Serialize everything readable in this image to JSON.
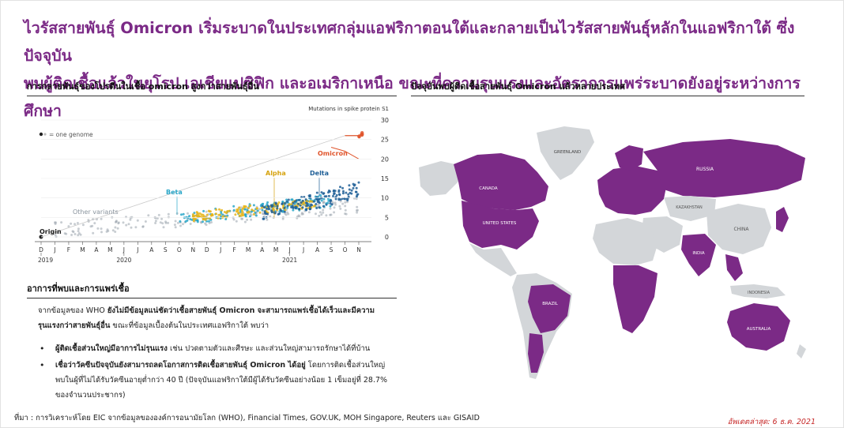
{
  "headline": {
    "line1": "ไวรัสสายพันธุ์ Omicron เริ่มระบาดในประเทศกลุ่มแอฟริกาตอนใต้และกลายเป็นไวรัสสายพันธุ์หลักในแอฟริกาใต้ ซึ่งปัจจุบัน",
    "line2": "พบผู้ติดเชื้อแล้วในยุโรป เอเชียแปซิฟิก และอเมริกาเหนือ ขณะที่ความรุนแรงและอัตราการแพร่ระบาดยังอยู่ระหว่างการศึกษา"
  },
  "left_section": {
    "title": "การกลายพันธุ์ของโปรตีนในเชื้อ omicron สูงกว่าสายพันธุ์อื่น"
  },
  "right_section": {
    "title": "ปัจจุบันพบผู้ติดเชื้อสายพันธุ์ Omicron แล้วหลายประเทศ"
  },
  "bottom_section": {
    "title": "อาการที่พบและการแพร่เชื้อ",
    "para_prefix": "จากข้อมูลของ WHO ",
    "para_bold": "ยังไม่มีข้อมูลแน่ชัดว่าเชื้อสายพันธุ์ Omicron จะสามารถแพร่เชื้อได้เร็วและมีความรุนแรงกว่าสายพันธุ์อื่น",
    "para_suffix": " ขณะที่ข้อมูลเบื้องต้นในประเทศแอฟริกาใต้ พบว่า",
    "bullets": [
      {
        "bold": "ผู้ติดเชื้อส่วนใหญ่มีอาการไม่รุนแรง",
        "rest": " เช่น ปวดตามตัวและศีรษะ และส่วนใหญ่สามารถรักษาได้ที่บ้าน"
      },
      {
        "bold": "เชื่อว่าวัคซีนปัจจุบันยังสามารถลดโอกาสการติดเชื้อสายพันธุ์ Omicron ได้อยู่",
        "rest": " โดยการติดเชื้อส่วนใหญ่พบในผู้ที่ไม่ได้รับวัคซีนอายุต่ำกว่า 40 ปี (ปัจจุบันแอฟริกาใต้มีผู้ได้รับวัคซีนอย่างน้อย 1 เข็มอยู่ที่ 28.7% ของจำนวนประชากร)"
      }
    ]
  },
  "footer": {
    "source": "ที่มา : การวิเคราะห์โดย EIC จากข้อมูลขององค์การอนามัยโลก (WHO), Financial Times, GOV.UK, MOH Singapore, Reuters และ GISAID",
    "updated": "อัพเดตล่าสุด: 6 ธ.ค. 2021"
  },
  "chart_data": {
    "type": "scatter",
    "title": "",
    "ylabel": "Mutations in spike protein S1",
    "ylim": [
      0,
      30
    ],
    "yticks": [
      0,
      5,
      10,
      15,
      20,
      25,
      30
    ],
    "x_months": [
      "D",
      "J",
      "F",
      "M",
      "A",
      "M",
      "J",
      "J",
      "A",
      "S",
      "O",
      "N",
      "D",
      "J",
      "F",
      "M",
      "A",
      "M",
      "J",
      "J",
      "A",
      "S",
      "O",
      "N"
    ],
    "x_years": [
      {
        "label": "2019",
        "month_index": 0
      },
      {
        "label": "2020",
        "month_index": 6
      },
      {
        "label": "2021",
        "month_index": 18
      }
    ],
    "legend": {
      "marker_label": "= one genome",
      "position": "top-left"
    },
    "annotations": [
      {
        "label": "Origin",
        "color": "#222222"
      },
      {
        "label": "Other variants",
        "color": "#9aa4ad"
      },
      {
        "label": "Beta",
        "color": "#2aa7c9"
      },
      {
        "label": "Alpha",
        "color": "#e7b51a"
      },
      {
        "label": "Delta",
        "color": "#1f5f97"
      },
      {
        "label": "Omicron",
        "color": "#e0552c"
      }
    ],
    "series": [
      {
        "name": "Other variants",
        "color": "#9aa4ad",
        "x_start": 1,
        "x_end": 23,
        "y_min": 0,
        "y_max": 10
      },
      {
        "name": "Beta",
        "color": "#2aa7c9",
        "x_start": 10,
        "x_end": 21,
        "y_min": 3,
        "y_max": 11
      },
      {
        "name": "Alpha",
        "color": "#e7b51a",
        "x_start": 11,
        "x_end": 20,
        "y_min": 4,
        "y_max": 10
      },
      {
        "name": "Delta",
        "color": "#1f5f97",
        "x_start": 16,
        "x_end": 23,
        "y_min": 4,
        "y_max": 14
      },
      {
        "name": "Omicron",
        "color": "#e0552c",
        "x_start": 23,
        "x_end": 23.3,
        "y_min": 25,
        "y_max": 27
      }
    ]
  },
  "map": {
    "fill_with_cases": "#7b2a86",
    "fill_without": "#d3d6d9",
    "country_labels": [
      "GREENLAND",
      "CANADA",
      "UNITED STATES",
      "RUSSIA",
      "KAZAKHSTAN",
      "CHINA",
      "INDIA",
      "BRAZIL",
      "INDONESIA",
      "AUSTRALIA"
    ]
  }
}
